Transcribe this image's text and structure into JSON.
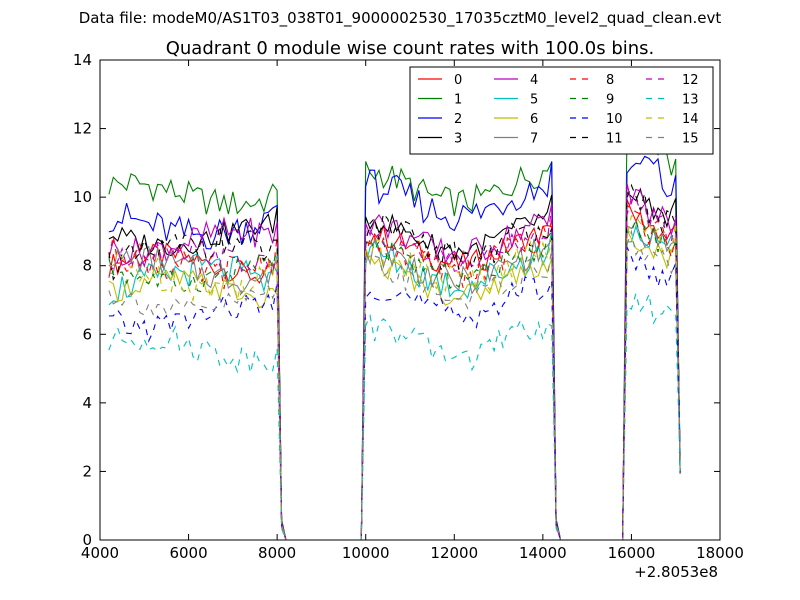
{
  "suptitle": "Data file: modeM0/AS1T03_038T01_9000002530_17035cztM0_level2_quad_clean.evt",
  "chart_data": {
    "type": "line",
    "title": "Quadrant 0 module wise count rates with 100.0s bins.",
    "xlabel": "",
    "ylabel": "",
    "x_offset_label": "+2.8053e8",
    "xlim": [
      4000,
      18000
    ],
    "ylim": [
      0,
      14
    ],
    "xticks": [
      4000,
      6000,
      8000,
      10000,
      12000,
      14000,
      16000,
      18000
    ],
    "yticks": [
      0,
      2,
      4,
      6,
      8,
      10,
      12,
      14
    ],
    "legend_location": "upper right",
    "legend_columns": 4,
    "segments": [
      [
        4200,
        8000
      ],
      [
        10000,
        14200
      ],
      [
        15900,
        17000
      ]
    ],
    "series": [
      {
        "name": "0",
        "color": "#ff0000",
        "dash": "solid",
        "levels": [
          8.0,
          8.5,
          9.6
        ]
      },
      {
        "name": "1",
        "color": "#008000",
        "dash": "solid",
        "levels": [
          10.1,
          10.3,
          11.8
        ]
      },
      {
        "name": "2",
        "color": "#0000ff",
        "dash": "solid",
        "levels": [
          9.2,
          9.9,
          11.2
        ]
      },
      {
        "name": "3",
        "color": "#000000",
        "dash": "solid",
        "levels": [
          8.9,
          8.9,
          10.2
        ]
      },
      {
        "name": "4",
        "color": "#bf00bf",
        "dash": "solid",
        "levels": [
          8.7,
          8.8,
          10.0
        ]
      },
      {
        "name": "5",
        "color": "#00bfbf",
        "dash": "solid",
        "levels": [
          7.6,
          7.9,
          9.2
        ]
      },
      {
        "name": "6",
        "color": "#bfbf00",
        "dash": "solid",
        "levels": [
          7.3,
          7.6,
          9.0
        ]
      },
      {
        "name": "7",
        "color": "#808080",
        "dash": "solid",
        "levels": [
          7.9,
          8.0,
          9.3
        ]
      },
      {
        "name": "8",
        "color": "#ff0000",
        "dash": "dashed",
        "levels": [
          8.1,
          8.3,
          9.5
        ]
      },
      {
        "name": "9",
        "color": "#008000",
        "dash": "dashed",
        "levels": [
          7.8,
          8.1,
          9.3
        ]
      },
      {
        "name": "10",
        "color": "#0000ff",
        "dash": "dashed",
        "levels": [
          6.5,
          7.0,
          8.3
        ]
      },
      {
        "name": "11",
        "color": "#000000",
        "dash": "dashed",
        "levels": [
          8.4,
          8.7,
          10.0
        ]
      },
      {
        "name": "12",
        "color": "#bf00bf",
        "dash": "dashed",
        "levels": [
          8.2,
          8.5,
          9.8
        ]
      },
      {
        "name": "13",
        "color": "#00bfbf",
        "dash": "dashed",
        "levels": [
          5.6,
          5.8,
          7.2
        ]
      },
      {
        "name": "14",
        "color": "#bfbf00",
        "dash": "dashed",
        "levels": [
          7.7,
          8.0,
          9.3
        ]
      },
      {
        "name": "15",
        "color": "#808080",
        "dash": "dashed",
        "levels": [
          7.0,
          7.5,
          8.8
        ]
      }
    ]
  }
}
